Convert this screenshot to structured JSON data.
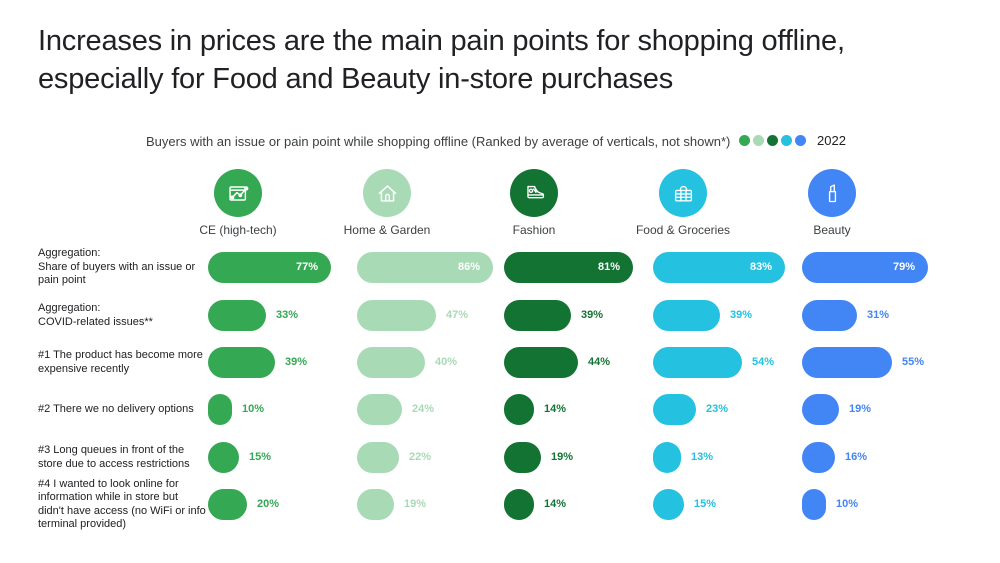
{
  "title": {
    "line1": "Increases in prices are the main pain points for shopping offline,",
    "line2": "especially for Food and Beauty in-store purchases"
  },
  "subtitle": "Buyers with an issue or pain point while shopping offline (Ranked by average of verticals, not shown*)",
  "legend": {
    "year": "2022"
  },
  "columns": [
    {
      "id": "ce",
      "label": "CE (high-tech)",
      "color": "#34A853",
      "icon": "network-chart-icon"
    },
    {
      "id": "home-garden",
      "label": "Home & Garden",
      "color": "#A8DAB5",
      "icon": "house-icon"
    },
    {
      "id": "fashion",
      "label": "Fashion",
      "color": "#137333",
      "icon": "sneaker-icon"
    },
    {
      "id": "food-groceries",
      "label": "Food & Groceries",
      "color": "#24C1E0",
      "icon": "basket-icon"
    },
    {
      "id": "beauty",
      "label": "Beauty",
      "color": "#4285F4",
      "icon": "lipstick-icon"
    }
  ],
  "rows": [
    "Aggregation:\nShare of buyers with an issue or\npain point",
    "Aggregation:\nCOVID-related issues**",
    "#1 The product has become more\nexpensive recently",
    "#2 There we no delivery options",
    "#3 Long queues in front of the\nstore due to access restrictions",
    "#4 I wanted to look online for\ninformation while in store but\ndidn't have access (no WiFi or info\nterminal provided)"
  ],
  "chart_data": {
    "type": "bar",
    "orientation": "horizontal",
    "unit": "%",
    "legend_year": "2022",
    "title": "Buyers with an issue or pain point while shopping offline (Ranked by average of verticals, not shown*)",
    "categories": [
      "Aggregation: Share of buyers with an issue or pain point",
      "Aggregation: COVID-related issues**",
      "#1 The product has become more expensive recently",
      "#2 There we no delivery options",
      "#3 Long queues in front of the store due to access restrictions",
      "#4 I wanted to look online for information while in store but didn't have access (no WiFi or info terminal provided)"
    ],
    "series": [
      {
        "name": "CE (high-tech)",
        "color": "#34A853",
        "values": [
          77,
          33,
          39,
          10,
          15,
          20
        ]
      },
      {
        "name": "Home & Garden",
        "color": "#A8DAB5",
        "values": [
          86,
          47,
          40,
          24,
          22,
          19
        ]
      },
      {
        "name": "Fashion",
        "color": "#137333",
        "values": [
          81,
          39,
          44,
          14,
          19,
          14
        ]
      },
      {
        "name": "Food & Groceries",
        "color": "#24C1E0",
        "values": [
          83,
          39,
          54,
          23,
          13,
          15
        ]
      },
      {
        "name": "Beauty",
        "color": "#4285F4",
        "values": [
          79,
          31,
          55,
          19,
          16,
          10
        ]
      }
    ]
  }
}
